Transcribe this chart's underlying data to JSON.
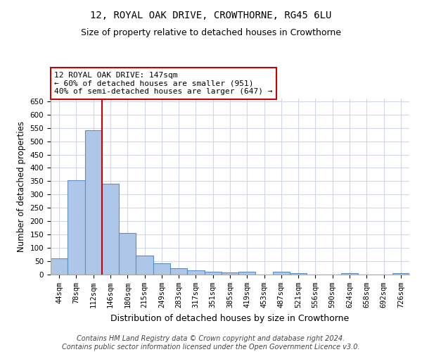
{
  "title": "12, ROYAL OAK DRIVE, CROWTHORNE, RG45 6LU",
  "subtitle": "Size of property relative to detached houses in Crowthorne",
  "xlabel": "Distribution of detached houses by size in Crowthorne",
  "ylabel": "Number of detached properties",
  "categories": [
    "44sqm",
    "78sqm",
    "112sqm",
    "146sqm",
    "180sqm",
    "215sqm",
    "249sqm",
    "283sqm",
    "317sqm",
    "351sqm",
    "385sqm",
    "419sqm",
    "453sqm",
    "487sqm",
    "521sqm",
    "556sqm",
    "590sqm",
    "624sqm",
    "658sqm",
    "692sqm",
    "726sqm"
  ],
  "values": [
    60,
    355,
    540,
    340,
    157,
    70,
    42,
    25,
    17,
    10,
    8,
    10,
    0,
    10,
    5,
    0,
    0,
    5,
    0,
    0,
    5
  ],
  "bar_color": "#aec6e8",
  "bar_edge_color": "#5a8fc0",
  "red_line_index": 2.5,
  "annotation_line1": "12 ROYAL OAK DRIVE: 147sqm",
  "annotation_line2": "← 60% of detached houses are smaller (951)",
  "annotation_line3": "40% of semi-detached houses are larger (647) →",
  "annotation_box_edge_color": "#cc0000",
  "annotation_box_face_color": "#ffffff",
  "red_line_color": "#cc0000",
  "ylim": [
    0,
    660
  ],
  "yticks": [
    0,
    50,
    100,
    150,
    200,
    250,
    300,
    350,
    400,
    450,
    500,
    550,
    600,
    650
  ],
  "background_color": "#ffffff",
  "grid_color": "#d0d8e8",
  "footer_line1": "Contains HM Land Registry data © Crown copyright and database right 2024.",
  "footer_line2": "Contains public sector information licensed under the Open Government Licence v3.0.",
  "title_fontsize": 10,
  "subtitle_fontsize": 9,
  "xlabel_fontsize": 9,
  "ylabel_fontsize": 8.5,
  "tick_fontsize": 7.5,
  "annotation_fontsize": 8,
  "footer_fontsize": 7
}
